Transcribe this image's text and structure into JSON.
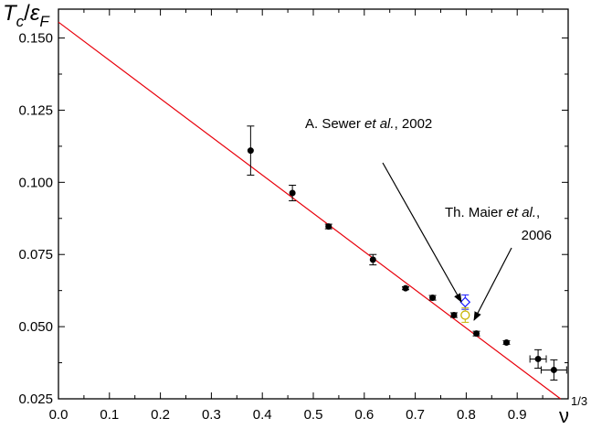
{
  "chart_data": {
    "type": "scatter",
    "title": "",
    "ylabel": {
      "main": "T",
      "sub1": "c",
      "sep": "/",
      "main2": "ε",
      "sub2": "F"
    },
    "xlabel": {
      "main": "ν",
      "sup": "1/3"
    },
    "xlim": [
      0.0,
      1.0
    ],
    "ylim": [
      0.025,
      0.16
    ],
    "x_ticks": [
      0.0,
      0.1,
      0.2,
      0.3,
      0.4,
      0.5,
      0.6,
      0.7,
      0.8,
      0.9
    ],
    "x_tick_labels": [
      "0.0",
      "0.1",
      "0.2",
      "0.3",
      "0.4",
      "0.5",
      "0.6",
      "0.7",
      "0.8",
      "0.9"
    ],
    "y_ticks": [
      0.025,
      0.05,
      0.075,
      0.1,
      0.125,
      0.15
    ],
    "y_tick_labels": [
      "0.025",
      "0.050",
      "0.075",
      "0.100",
      "0.125",
      "0.150"
    ],
    "grid": false,
    "fit_line": {
      "x": [
        0.0,
        0.985
      ],
      "y": [
        0.1555,
        0.025
      ],
      "color": "#e8000b"
    },
    "series": [
      {
        "marker": "filled-circle",
        "color": "#000000",
        "points": [
          {
            "x": 0.377,
            "y": 0.111,
            "yerr": 0.0085,
            "xerr": 0
          },
          {
            "x": 0.459,
            "y": 0.0963,
            "yerr": 0.0027,
            "xerr": 0
          },
          {
            "x": 0.53,
            "y": 0.0847,
            "yerr": 0.0008,
            "xerr": 0
          },
          {
            "x": 0.617,
            "y": 0.0732,
            "yerr": 0.0018,
            "xerr": 0
          },
          {
            "x": 0.681,
            "y": 0.0633,
            "yerr": 0.0005,
            "xerr": 0
          },
          {
            "x": 0.734,
            "y": 0.06,
            "yerr": 0.0008,
            "xerr": 0
          },
          {
            "x": 0.776,
            "y": 0.054,
            "yerr": 0.0008,
            "xerr": 0
          },
          {
            "x": 0.82,
            "y": 0.0476,
            "yerr": 0.0008,
            "xerr": 0
          },
          {
            "x": 0.879,
            "y": 0.0445,
            "yerr": 0.0006,
            "xerr": 0
          },
          {
            "x": 0.941,
            "y": 0.0388,
            "yerr": 0.0032,
            "xerr": 0.016
          },
          {
            "x": 0.972,
            "y": 0.035,
            "yerr": 0.0035,
            "xerr": 0.025
          }
        ]
      },
      {
        "marker": "open-diamond",
        "color": "#1a1aff",
        "points": [
          {
            "x": 0.798,
            "y": 0.0585,
            "yerr": 0.0025,
            "xerr": 0
          }
        ]
      },
      {
        "marker": "open-circle",
        "color": "#c8b400",
        "points": [
          {
            "x": 0.798,
            "y": 0.054,
            "yerr": 0.0025,
            "xerr": 0
          }
        ]
      }
    ],
    "annotations": [
      {
        "parts": [
          "A. Sewer ",
          "et al.",
          ", 2002"
        ]
      },
      {
        "parts": [
          "Th. Maier ",
          "et al.",
          ","
        ],
        "line2": "2006"
      }
    ]
  }
}
